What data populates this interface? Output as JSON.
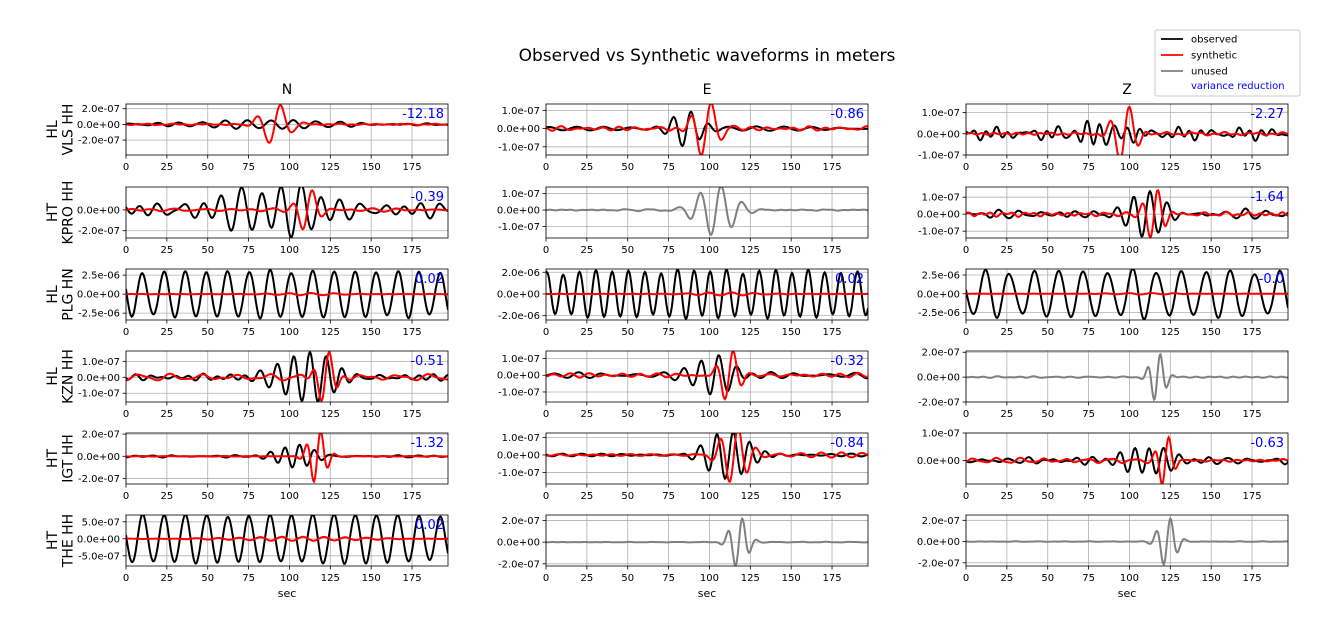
{
  "chart_data": {
    "type": "line",
    "title": "Observed vs Synthetic waveforms in meters",
    "column_titles": [
      "N",
      "E",
      "Z"
    ],
    "xlabel": "sec",
    "xlim": [
      0,
      197
    ],
    "xticks": [
      0,
      25,
      50,
      75,
      100,
      125,
      150,
      175
    ],
    "grid": true,
    "legend": {
      "placement": "top-right",
      "entries": [
        {
          "label": "observed",
          "color": "#000000"
        },
        {
          "label": "synthetic",
          "color": "#ff0000"
        },
        {
          "label": "unused",
          "color": "#808080"
        },
        {
          "label": "variance reduction",
          "color": "#0000ff",
          "text_only": true
        }
      ]
    },
    "stations": [
      {
        "network": "HL",
        "station": "VLS HH"
      },
      {
        "network": "HT",
        "station": "KPRO HH"
      },
      {
        "network": "HL",
        "station": "PLG HN"
      },
      {
        "network": "HL",
        "station": "KZN HH"
      },
      {
        "network": "HT",
        "station": "IGT HH"
      },
      {
        "network": "HT",
        "station": "THE HH"
      }
    ],
    "panels": [
      [
        {
          "vr": "-12.18",
          "used": true,
          "ylim": [
            -3.9e-07,
            2.6e-07
          ],
          "yticks": [
            2e-07,
            0,
            -2e-07
          ],
          "yticklabels": [
            "2.0e-07",
            "0.0e+00",
            "-2.0e-07"
          ],
          "obs": {
            "amp": 5.5e-08,
            "center": 85,
            "width": 55,
            "period": 14,
            "bg": 2e-08,
            "seed": 11
          },
          "syn": {
            "amp": 2.7e-07,
            "center": 91,
            "width": 11,
            "period": 15,
            "bg": 1.5e-08,
            "seed": 12
          }
        },
        {
          "vr": "-0.86",
          "used": true,
          "ylim": [
            -1.45e-07,
            1.35e-07
          ],
          "yticks": [
            1e-07,
            0,
            -1e-07
          ],
          "yticklabels": [
            "1.0e-07",
            "0.0e+00",
            "-1.0e-07"
          ],
          "obs": {
            "amp": 1e-07,
            "center": 86,
            "width": 12,
            "period": 11,
            "bg": 2e-08,
            "seed": 13
          },
          "syn": {
            "amp": 1.5e-07,
            "center": 98,
            "width": 10,
            "period": 13,
            "bg": 1.5e-08,
            "seed": 14
          }
        },
        {
          "vr": "-2.27",
          "used": true,
          "ylim": [
            -1e-07,
            1.4e-07
          ],
          "yticks": [
            1e-07,
            0,
            -1e-07
          ],
          "yticklabels": [
            "1.0e-07",
            "0.0e+00",
            "-1.0e-07"
          ],
          "obs": {
            "amp": 6e-08,
            "center": 80,
            "width": 20,
            "period": 8,
            "bg": 3e-08,
            "seed": 15
          },
          "syn": {
            "amp": 1.4e-07,
            "center": 97,
            "width": 9,
            "period": 12,
            "bg": 1e-08,
            "seed": 16
          }
        }
      ],
      [
        {
          "vr": "-0.39",
          "used": true,
          "ylim": [
            -2.7e-07,
            2.2e-07
          ],
          "yticks": [
            0,
            -2e-07
          ],
          "yticklabels": [
            "0.0e+00",
            "-2.0e-07"
          ],
          "obs": {
            "amp": 2.6e-07,
            "center": 92,
            "width": 40,
            "period": 12,
            "bg": 9e-08,
            "seed": 21
          },
          "syn": {
            "amp": 2.2e-07,
            "center": 111,
            "width": 8,
            "period": 13,
            "bg": 2e-08,
            "seed": 22
          }
        },
        {
          "vr": "",
          "used": false,
          "ylim": [
            -1.7e-07,
            1.4e-07
          ],
          "yticks": [
            1e-07,
            0,
            -1e-07
          ],
          "yticklabels": [
            "1.0e-07",
            "0.0e+00",
            "-1.0e-07"
          ],
          "obs": {
            "amp": 1.6e-07,
            "center": 104,
            "width": 15,
            "period": 13,
            "bg": 5e-09,
            "seed": 23
          }
        },
        {
          "vr": "-1.64",
          "used": true,
          "ylim": [
            -1.4e-07,
            1.6e-07
          ],
          "yticks": [
            1e-07,
            0,
            -1e-07
          ],
          "yticklabels": [
            "1.0e-07",
            "0.0e+00",
            "-1.0e-07"
          ],
          "obs": {
            "amp": 1.2e-07,
            "center": 110,
            "width": 16,
            "period": 10,
            "bg": 3e-08,
            "seed": 24
          },
          "syn": {
            "amp": 1.55e-07,
            "center": 115,
            "width": 8,
            "period": 10,
            "bg": 2e-08,
            "seed": 25
          }
        }
      ],
      [
        {
          "vr": "0.02",
          "used": true,
          "ylim": [
            -3.4e-06,
            3.3e-06
          ],
          "yticks": [
            2.5e-06,
            0,
            -2.5e-06
          ],
          "yticklabels": [
            "2.5e-06",
            "0.0e+00",
            "-2.5e-06"
          ],
          "obs": {
            "amp": 3e-06,
            "center": 98,
            "width": 400,
            "period": 13,
            "bg": 5e-07,
            "seed": 31
          },
          "syn": {
            "amp": 1.5e-07,
            "center": 110,
            "width": 25,
            "period": 14,
            "bg": 3e-08,
            "seed": 32
          }
        },
        {
          "vr": "0.02",
          "used": true,
          "ylim": [
            -2.4e-06,
            2.3e-06
          ],
          "yticks": [
            2e-06,
            0,
            -2e-06
          ],
          "yticklabels": [
            "2.0e-06",
            "0.0e+00",
            "-2.0e-06"
          ],
          "obs": {
            "amp": 2.1e-06,
            "center": 98,
            "width": 400,
            "period": 10,
            "bg": 4e-07,
            "seed": 33
          },
          "syn": {
            "amp": 1.5e-07,
            "center": 110,
            "width": 25,
            "period": 14,
            "bg": 3e-08,
            "seed": 34
          }
        },
        {
          "vr": "-0.0",
          "used": true,
          "ylim": [
            -3.5e-06,
            3.3e-06
          ],
          "yticks": [
            2.5e-06,
            0,
            -2.5e-06
          ],
          "yticklabels": [
            "2.5e-06",
            "0.0e+00",
            "-2.5e-06"
          ],
          "obs": {
            "amp": 3e-06,
            "center": 98,
            "width": 400,
            "period": 15,
            "bg": 5e-07,
            "seed": 35
          },
          "syn": {
            "amp": 1e-07,
            "center": 110,
            "width": 25,
            "period": 14,
            "bg": 2e-08,
            "seed": 36
          }
        }
      ],
      [
        {
          "vr": "-0.51",
          "used": true,
          "ylim": [
            -1.55e-07,
            1.65e-07
          ],
          "yticks": [
            1e-07,
            0,
            -1e-07
          ],
          "yticklabels": [
            "1.0e-07",
            "0.0e+00",
            "-1.0e-07"
          ],
          "obs": {
            "amp": 1.6e-07,
            "center": 110,
            "width": 25,
            "period": 10,
            "bg": 2.5e-08,
            "seed": 41
          },
          "syn": {
            "amp": 1.6e-07,
            "center": 122,
            "width": 8,
            "period": 10,
            "bg": 2e-08,
            "seed": 42
          }
        },
        {
          "vr": "-0.32",
          "used": true,
          "ylim": [
            -1.6e-07,
            1.45e-07
          ],
          "yticks": [
            1e-07,
            0,
            -1e-07
          ],
          "yticklabels": [
            "1.0e-07",
            "0.0e+00",
            "-1.0e-07"
          ],
          "obs": {
            "amp": 1.2e-07,
            "center": 103,
            "width": 16,
            "period": 11,
            "bg": 2e-08,
            "seed": 43
          },
          "syn": {
            "amp": 1.6e-07,
            "center": 112,
            "width": 8,
            "period": 11,
            "bg": 1.5e-08,
            "seed": 44
          }
        },
        {
          "vr": "",
          "used": false,
          "ylim": [
            -2e-07,
            2.1e-07
          ],
          "yticks": [
            2e-07,
            0,
            -2e-07
          ],
          "yticklabels": [
            "2.0e-07",
            "0.0e+00",
            "-2.0e-07"
          ],
          "obs": {
            "amp": 2e-07,
            "center": 117,
            "width": 6,
            "period": 8,
            "bg": 1e-08,
            "seed": 45
          }
        }
      ],
      [
        {
          "vr": "-1.32",
          "used": true,
          "ylim": [
            -2.5e-07,
            2.1e-07
          ],
          "yticks": [
            2e-07,
            0,
            -2e-07
          ],
          "yticklabels": [
            "2.0e-07",
            "0.0e+00",
            "-2.0e-07"
          ],
          "obs": {
            "amp": 1e-07,
            "center": 104,
            "width": 15,
            "period": 9,
            "bg": 1e-08,
            "seed": 51
          },
          "syn": {
            "amp": 2.5e-07,
            "center": 117,
            "width": 7,
            "period": 9,
            "bg": 5e-09,
            "seed": 52
          }
        },
        {
          "vr": "-0.84",
          "used": true,
          "ylim": [
            -1.65e-07,
            1.25e-07
          ],
          "yticks": [
            1e-07,
            0,
            -1e-07
          ],
          "yticklabels": [
            "1.0e-07",
            "0.0e+00",
            "-1.0e-07"
          ],
          "obs": {
            "amp": 1.3e-07,
            "center": 112,
            "width": 18,
            "period": 10,
            "bg": 1.5e-08,
            "seed": 53
          },
          "syn": {
            "amp": 1.6e-07,
            "center": 115,
            "width": 11,
            "period": 11,
            "bg": 1.5e-08,
            "seed": 54
          }
        },
        {
          "vr": "-0.63",
          "used": true,
          "ylim": [
            -8.5e-08,
            1e-07
          ],
          "yticks": [
            1e-07,
            0
          ],
          "yticklabels": [
            "1.0e-07",
            "0.0e+00"
          ],
          "obs": {
            "amp": 5e-08,
            "center": 110,
            "width": 22,
            "period": 9,
            "bg": 1.5e-08,
            "seed": 55
          },
          "syn": {
            "amp": 1e-07,
            "center": 122,
            "width": 6,
            "period": 9,
            "bg": 1e-08,
            "seed": 56
          }
        }
      ],
      [
        {
          "vr": "0.02",
          "used": true,
          "ylim": [
            -8e-07,
            7e-07
          ],
          "yticks": [
            5e-07,
            0,
            -5e-07
          ],
          "yticklabels": [
            "5.0e-07",
            "0.0e+00",
            "-5.0e-07"
          ],
          "obs": {
            "amp": 7e-07,
            "center": 98,
            "width": 400,
            "period": 13,
            "bg": 8e-08,
            "seed": 61
          },
          "syn": {
            "amp": 6e-08,
            "center": 105,
            "width": 50,
            "period": 13,
            "bg": 1e-08,
            "seed": 62
          }
        },
        {
          "vr": "",
          "used": false,
          "ylim": [
            -2.2e-07,
            2.5e-07
          ],
          "yticks": [
            2e-07,
            0,
            -2e-07
          ],
          "yticklabels": [
            "2.0e-07",
            "0.0e+00",
            "-2.0e-07"
          ],
          "obs": {
            "amp": 2.4e-07,
            "center": 118,
            "width": 7,
            "period": 9,
            "bg": 5e-09,
            "seed": 63
          }
        },
        {
          "vr": "",
          "used": false,
          "ylim": [
            -2.3e-07,
            2.5e-07
          ],
          "yticks": [
            2e-07,
            0,
            -2e-07
          ],
          "yticklabels": [
            "2.0e-07",
            "0.0e+00",
            "-2.0e-07"
          ],
          "obs": {
            "amp": 2.4e-07,
            "center": 123,
            "width": 7,
            "period": 9,
            "bg": 5e-09,
            "seed": 64
          }
        }
      ]
    ]
  }
}
